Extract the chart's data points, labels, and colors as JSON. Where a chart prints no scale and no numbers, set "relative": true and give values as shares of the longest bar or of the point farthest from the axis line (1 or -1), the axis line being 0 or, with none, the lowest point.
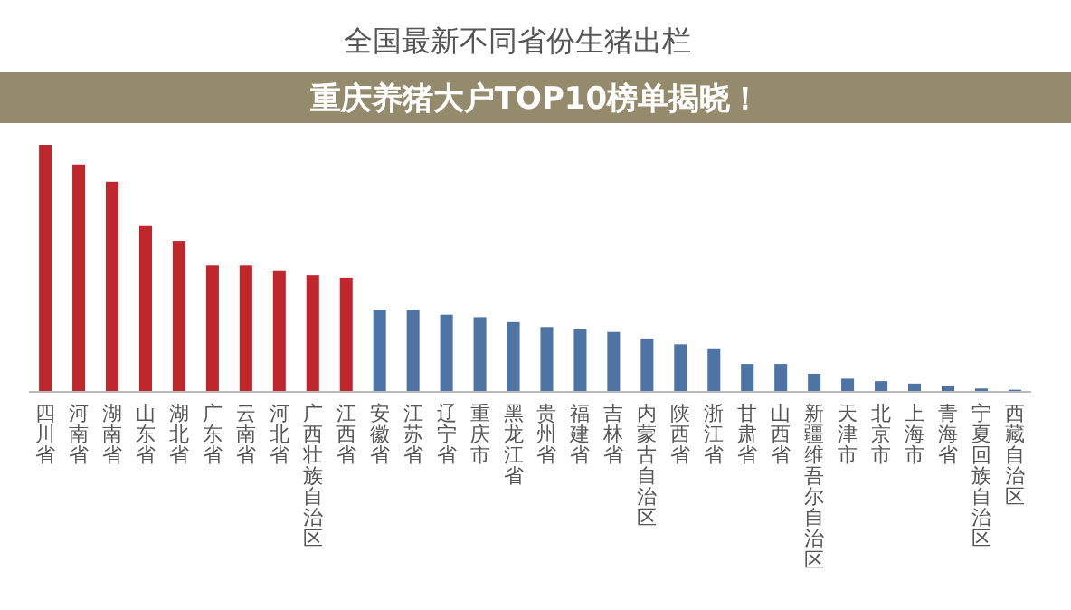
{
  "chart_data": {
    "type": "bar",
    "title": "全国最新不同省份生猪出栏",
    "annotations": [
      "重庆养猪大户TOP10榜单揭晓！"
    ],
    "relative": true,
    "grid": false,
    "categories": [
      "四川省",
      "河南省",
      "湖南省",
      "山东省",
      "湖北省",
      "广东省",
      "云南省",
      "河北省",
      "广西壮族自治区",
      "江西省",
      "安徽省",
      "江苏省",
      "辽宁省",
      "重庆市",
      "黑龙江省",
      "贵州省",
      "福建省",
      "吉林省",
      "内蒙古自治区",
      "陕西省",
      "浙江省",
      "甘肃省",
      "山西省",
      "新疆维吾尔自治区",
      "天津市",
      "北京市",
      "上海市",
      "青海省",
      "宁夏回族自治区",
      "西藏自治区"
    ],
    "values": [
      1,
      0.92,
      0.85,
      0.67,
      0.61,
      0.51,
      0.51,
      0.49,
      0.47,
      0.46,
      0.33,
      0.33,
      0.31,
      0.3,
      0.28,
      0.26,
      0.25,
      0.24,
      0.21,
      0.19,
      0.17,
      0.11,
      0.11,
      0.07,
      0.05,
      0.04,
      0.03,
      0.02,
      0.01,
      0.005
    ],
    "colors": [
      "#c0272d",
      "#c0272d",
      "#c0272d",
      "#c0272d",
      "#c0272d",
      "#c0272d",
      "#c0272d",
      "#c0272d",
      "#c0272d",
      "#c0272d",
      "#4e74a6",
      "#4e74a6",
      "#4e74a6",
      "#4e74a6",
      "#4e74a6",
      "#4e74a6",
      "#4e74a6",
      "#4e74a6",
      "#4e74a6",
      "#4e74a6",
      "#4e74a6",
      "#4e74a6",
      "#4e74a6",
      "#4e74a6",
      "#4e74a6",
      "#4e74a6",
      "#4e74a6",
      "#4e74a6",
      "#4e74a6",
      "#4e74a6"
    ]
  }
}
